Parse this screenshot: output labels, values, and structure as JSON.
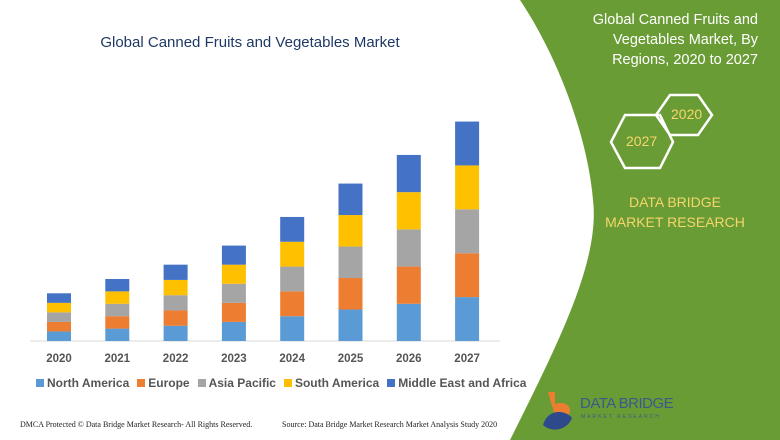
{
  "chart_data": {
    "type": "bar",
    "stacked": true,
    "title": "Global Canned Fruits and Vegetables Market",
    "categories": [
      "2020",
      "2021",
      "2022",
      "2023",
      "2024",
      "2025",
      "2026",
      "2027"
    ],
    "series": [
      {
        "name": "North America",
        "color": "#5b9bd5",
        "values": [
          10,
          13,
          16,
          20,
          26,
          33,
          39,
          46
        ]
      },
      {
        "name": "Europe",
        "color": "#ed7d31",
        "values": [
          10,
          13,
          16,
          20,
          26,
          33,
          39,
          46
        ]
      },
      {
        "name": "Asia Pacific",
        "color": "#a5a5a5",
        "values": [
          10,
          13,
          16,
          20,
          26,
          33,
          39,
          46
        ]
      },
      {
        "name": "South America",
        "color": "#ffc000",
        "values": [
          10,
          13,
          16,
          20,
          26,
          33,
          39,
          46
        ]
      },
      {
        "name": "Middle East and Africa",
        "color": "#4472c4",
        "values": [
          10,
          13,
          16,
          20,
          26,
          33,
          39,
          46
        ]
      }
    ],
    "ylim": [
      0,
      240
    ],
    "grid": false,
    "legend": "bottom"
  },
  "panel": {
    "title": "Global Canned Fruits and Vegetables Market, By Regions, 2020 to 2027",
    "hex_start": "2020",
    "hex_end": "2027",
    "brand": "DATA BRIDGE MARKET RESEARCH",
    "green": "#6a9c35",
    "accent": "#f5d66b"
  },
  "logo": {
    "name": "DATA BRIDGE",
    "sub": "MARKET RESEARCH"
  },
  "footer": {
    "dmca": "DMCA Protected © Data Bridge Market Research- All Rights Reserved.",
    "source": "Source: Data Bridge Market Research Market Analysis Study 2020"
  }
}
